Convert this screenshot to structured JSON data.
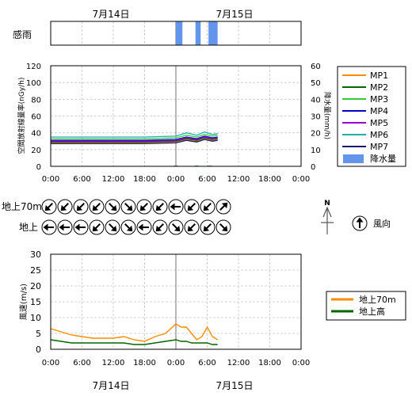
{
  "dates": [
    "7月14日",
    "7月15日"
  ],
  "rain_sense": {
    "label": "感雨",
    "color": "#6495ed",
    "intervals": [
      [
        "2024-07-15 00:00",
        "2024-07-15 01:15"
      ],
      [
        "2024-07-15 03:45",
        "2024-07-15 04:45"
      ],
      [
        "2024-07-15 06:15",
        "2024-07-15 08:00"
      ]
    ]
  },
  "time_ticks": [
    "0:00",
    "6:00",
    "12:00",
    "18:00",
    "0:00",
    "6:00",
    "12:00",
    "18:00",
    "0:00"
  ],
  "wind_dir": {
    "label": "風向",
    "rows": [
      {
        "label": "地上70m",
        "directions": [
          "SW",
          "SW",
          "SW",
          "SW",
          "SE",
          "SE",
          "SW",
          "SW",
          "W",
          "SW",
          "SW",
          "NE"
        ]
      },
      {
        "label": "地上",
        "directions": [
          "W",
          "W",
          "W",
          "SW",
          "SE",
          "SE",
          "W",
          "SW",
          "SE",
          "SW",
          "SW",
          "SE"
        ]
      }
    ],
    "legend_direction": "N"
  },
  "chart_data": [
    {
      "type": "line",
      "ylabel": "空間放射線量率(nGy/h)",
      "ylabel2": "降水量(mm/h)",
      "ylim": [
        0,
        120
      ],
      "ylim2": [
        0,
        60
      ],
      "yticks": [
        "0",
        "20",
        "40",
        "60",
        "80",
        "100",
        "120"
      ],
      "yticks2": [
        "0",
        "10",
        "20",
        "30",
        "40",
        "50",
        "60"
      ],
      "x_range": [
        "2024-07-14 00:00",
        "2024-07-16 00:00"
      ],
      "grid": true,
      "legend_position": "right",
      "series": [
        {
          "name": "MP1",
          "color": "#ff8c00",
          "x": [
            "2024-07-14 00:00",
            "2024-07-14 06:00",
            "2024-07-14 12:00",
            "2024-07-14 18:00",
            "2024-07-15 00:00",
            "2024-07-15 02:00",
            "2024-07-15 04:00",
            "2024-07-15 05:30",
            "2024-07-15 07:00",
            "2024-07-15 08:00"
          ],
          "values": [
            28,
            28,
            28,
            28,
            29,
            32,
            30,
            33,
            31,
            32
          ]
        },
        {
          "name": "MP2",
          "color": "#006400",
          "x": [
            "2024-07-14 00:00",
            "2024-07-14 06:00",
            "2024-07-14 12:00",
            "2024-07-14 18:00",
            "2024-07-15 00:00",
            "2024-07-15 02:00",
            "2024-07-15 04:00",
            "2024-07-15 05:30",
            "2024-07-15 07:00",
            "2024-07-15 08:00"
          ],
          "values": [
            29,
            29,
            29,
            29,
            30,
            33,
            31,
            34,
            32,
            33
          ]
        },
        {
          "name": "MP3",
          "color": "#32cd32",
          "x": [
            "2024-07-14 00:00",
            "2024-07-14 06:00",
            "2024-07-14 12:00",
            "2024-07-14 18:00",
            "2024-07-15 00:00",
            "2024-07-15 02:00",
            "2024-07-15 04:00",
            "2024-07-15 05:30",
            "2024-07-15 07:00",
            "2024-07-15 08:00"
          ],
          "values": [
            33,
            33,
            33,
            33,
            34,
            37,
            35,
            38,
            36,
            37
          ]
        },
        {
          "name": "MP4",
          "color": "#0000cd",
          "x": [
            "2024-07-14 00:00",
            "2024-07-14 06:00",
            "2024-07-14 12:00",
            "2024-07-14 18:00",
            "2024-07-15 00:00",
            "2024-07-15 02:00",
            "2024-07-15 04:00",
            "2024-07-15 05:30",
            "2024-07-15 07:00",
            "2024-07-15 08:00"
          ],
          "values": [
            31,
            31,
            31,
            31,
            32,
            35,
            33,
            36,
            34,
            35
          ]
        },
        {
          "name": "MP5",
          "color": "#9400d3",
          "x": [
            "2024-07-14 00:00",
            "2024-07-14 06:00",
            "2024-07-14 12:00",
            "2024-07-14 18:00",
            "2024-07-15 00:00",
            "2024-07-15 02:00",
            "2024-07-15 04:00",
            "2024-07-15 05:30",
            "2024-07-15 07:00",
            "2024-07-15 08:00"
          ],
          "values": [
            30,
            30,
            30,
            30,
            31,
            34,
            32,
            35,
            33,
            34
          ]
        },
        {
          "name": "MP6",
          "color": "#20b2aa",
          "x": [
            "2024-07-14 00:00",
            "2024-07-14 06:00",
            "2024-07-14 12:00",
            "2024-07-14 18:00",
            "2024-07-15 00:00",
            "2024-07-15 02:00",
            "2024-07-15 04:00",
            "2024-07-15 05:30",
            "2024-07-15 07:00",
            "2024-07-15 08:00"
          ],
          "values": [
            35,
            35,
            35,
            35,
            36,
            40,
            37,
            41,
            38,
            39
          ]
        },
        {
          "name": "MP7",
          "color": "#191970",
          "x": [
            "2024-07-14 00:00",
            "2024-07-14 06:00",
            "2024-07-14 12:00",
            "2024-07-14 18:00",
            "2024-07-15 00:00",
            "2024-07-15 02:00",
            "2024-07-15 04:00",
            "2024-07-15 05:30",
            "2024-07-15 07:00",
            "2024-07-15 08:00"
          ],
          "values": [
            27,
            27,
            27,
            27,
            28,
            31,
            29,
            32,
            30,
            31
          ]
        },
        {
          "name": "降水量",
          "color": "#6495ed",
          "kind": "bar",
          "axis": "right",
          "x": [
            "2024-07-15 00:00",
            "2024-07-15 04:00",
            "2024-07-15 06:30"
          ],
          "values": [
            0.5,
            0.5,
            0.5
          ]
        }
      ]
    },
    {
      "type": "line",
      "ylabel": "風速(m/s)",
      "ylim": [
        0,
        30
      ],
      "yticks": [
        "0",
        "5",
        "10",
        "15",
        "20",
        "25",
        "30"
      ],
      "x_range": [
        "2024-07-14 00:00",
        "2024-07-16 00:00"
      ],
      "grid": true,
      "legend_position": "right",
      "series": [
        {
          "name": "地上70m",
          "color": "#ff8c00",
          "x": [
            "2024-07-14 00:00",
            "2024-07-14 02:00",
            "2024-07-14 04:00",
            "2024-07-14 06:00",
            "2024-07-14 08:00",
            "2024-07-14 10:00",
            "2024-07-14 12:00",
            "2024-07-14 14:00",
            "2024-07-14 16:00",
            "2024-07-14 18:00",
            "2024-07-14 20:00",
            "2024-07-14 22:00",
            "2024-07-15 00:00",
            "2024-07-15 01:00",
            "2024-07-15 02:00",
            "2024-07-15 03:00",
            "2024-07-15 04:00",
            "2024-07-15 05:00",
            "2024-07-15 06:00",
            "2024-07-15 07:00",
            "2024-07-15 08:00"
          ],
          "values": [
            6.5,
            5.5,
            4.5,
            4,
            3.5,
            3.5,
            3.5,
            4,
            3,
            2.5,
            4,
            5,
            8,
            7,
            7,
            5,
            3,
            4,
            7,
            4,
            3
          ]
        },
        {
          "name": "地上高",
          "color": "#006400",
          "x": [
            "2024-07-14 00:00",
            "2024-07-14 02:00",
            "2024-07-14 04:00",
            "2024-07-14 06:00",
            "2024-07-14 08:00",
            "2024-07-14 10:00",
            "2024-07-14 12:00",
            "2024-07-14 14:00",
            "2024-07-14 16:00",
            "2024-07-14 18:00",
            "2024-07-14 20:00",
            "2024-07-14 22:00",
            "2024-07-15 00:00",
            "2024-07-15 01:00",
            "2024-07-15 02:00",
            "2024-07-15 03:00",
            "2024-07-15 04:00",
            "2024-07-15 05:00",
            "2024-07-15 06:00",
            "2024-07-15 07:00",
            "2024-07-15 08:00"
          ],
          "values": [
            3,
            2.5,
            2,
            2,
            2,
            2,
            2,
            2,
            1.5,
            1.5,
            2,
            2.5,
            3,
            2.5,
            2.5,
            2,
            2,
            2,
            2,
            1.5,
            1.5
          ]
        }
      ]
    }
  ]
}
